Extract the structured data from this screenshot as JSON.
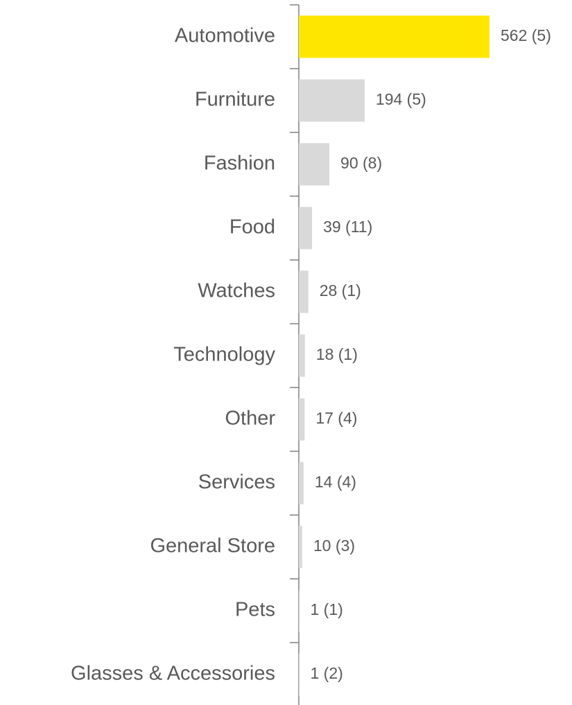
{
  "chart_data": {
    "type": "hbar",
    "categories": [
      "Automotive",
      "Furniture",
      "Fashion",
      "Food",
      "Watches",
      "Technology",
      "Other",
      "Services",
      "General Store",
      "Pets",
      "Glasses & Accessories"
    ],
    "values": [
      562,
      194,
      90,
      39,
      28,
      18,
      17,
      14,
      10,
      1,
      1
    ],
    "value_labels": [
      "562 (5)",
      "194 (5)",
      "90 (8)",
      "39 (11)",
      "28 (1)",
      "18 (1)",
      "17 (4)",
      "14 (4)",
      "10 (3)",
      "1 (1)",
      "1 (2)"
    ],
    "colors": [
      "#FFE600",
      "#D9D9D9",
      "#D9D9D9",
      "#D9D9D9",
      "#D9D9D9",
      "#D9D9D9",
      "#D9D9D9",
      "#D9D9D9",
      "#D9D9D9",
      "#D9D9D9",
      "#D9D9D9"
    ]
  }
}
